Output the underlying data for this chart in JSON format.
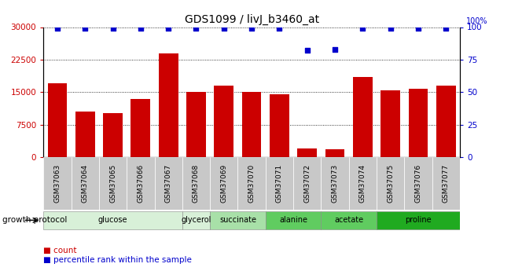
{
  "title": "GDS1099 / livJ_b3460_at",
  "samples": [
    "GSM37063",
    "GSM37064",
    "GSM37065",
    "GSM37066",
    "GSM37067",
    "GSM37068",
    "GSM37069",
    "GSM37070",
    "GSM37071",
    "GSM37072",
    "GSM37073",
    "GSM37074",
    "GSM37075",
    "GSM37076",
    "GSM37077"
  ],
  "counts": [
    17000,
    10500,
    10200,
    13500,
    24000,
    15000,
    16500,
    15000,
    14500,
    2000,
    1800,
    18500,
    15500,
    15800,
    16500
  ],
  "percentile_ranks": [
    99,
    99,
    99,
    99,
    99,
    99,
    99,
    99,
    99,
    82,
    83,
    99,
    99,
    99,
    99
  ],
  "groups": [
    {
      "label": "glucose",
      "start": 0,
      "end": 4,
      "color": "#e0f5e0"
    },
    {
      "label": "glycerol",
      "start": 5,
      "end": 5,
      "color": "#e0f5e0"
    },
    {
      "label": "succinate",
      "start": 6,
      "end": 7,
      "color": "#c0ecc0"
    },
    {
      "label": "alanine",
      "start": 8,
      "end": 9,
      "color": "#70d870"
    },
    {
      "label": "acetate",
      "start": 10,
      "end": 11,
      "color": "#70d870"
    },
    {
      "label": "proline",
      "start": 12,
      "end": 14,
      "color": "#22bb22"
    }
  ],
  "bar_color": "#cc0000",
  "dot_color": "#0000cc",
  "ylim_left": [
    0,
    30000
  ],
  "ylim_right": [
    0,
    100
  ],
  "yticks_left": [
    0,
    7500,
    15000,
    22500,
    30000
  ],
  "yticks_right": [
    0,
    25,
    50,
    75,
    100
  ],
  "growth_protocol_label": "growth protocol",
  "background_color": "#ffffff"
}
